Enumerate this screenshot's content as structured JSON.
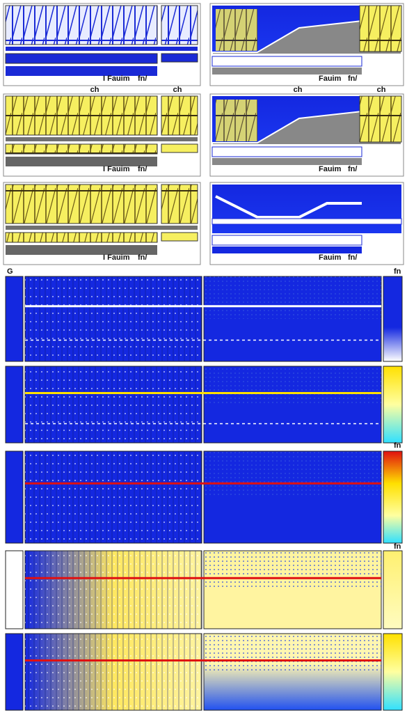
{
  "top_rows": [
    {
      "left": {
        "label_a": "I Fauim",
        "label_b": "fn/"
      },
      "right": {
        "label_a": "Fauim",
        "label_b": "fn/"
      },
      "captions": [
        "ch",
        "ch",
        "ch",
        "ch"
      ]
    },
    {
      "left": {
        "label_a": "I Fauim",
        "label_b": "fn/"
      },
      "right": {
        "label_a": "Fauim",
        "label_b": "fn/"
      }
    },
    {
      "left": {
        "label_a": "I Fauim",
        "label_b": "fn/"
      },
      "right": {
        "label_a": "Fauim",
        "label_b": "fn/"
      }
    }
  ],
  "section_label": "G",
  "colorbar_labels": [
    "fn",
    "fn",
    "fn"
  ]
}
